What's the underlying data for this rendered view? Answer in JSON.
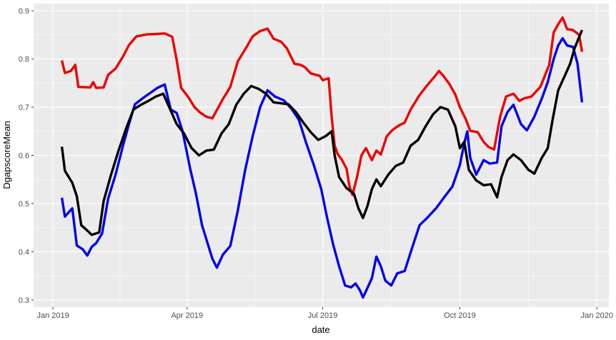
{
  "chart_data": {
    "type": "line",
    "xlabel": "date",
    "ylabel": "DgapscoreMean",
    "xlim": [
      "2018-12-19",
      "2020-01-09"
    ],
    "ylim": [
      0.285,
      0.915
    ],
    "x_ticks": [
      {
        "date": "2019-01-01",
        "label": "Jan 2019"
      },
      {
        "date": "2019-04-01",
        "label": "Apr 2019"
      },
      {
        "date": "2019-07-01",
        "label": "Jul 2019"
      },
      {
        "date": "2019-10-01",
        "label": "Oct 2019"
      },
      {
        "date": "2020-01-01",
        "label": "Jan 2020"
      }
    ],
    "y_ticks": [
      0.3,
      0.4,
      0.5,
      0.6,
      0.7,
      0.8,
      0.9
    ],
    "grid": true,
    "legend": "none",
    "background": "#ebebeb",
    "series": [
      {
        "color": "#ee0000",
        "points": [
          [
            "2019-01-07",
            0.797
          ],
          [
            "2019-01-09",
            0.771
          ],
          [
            "2019-01-13",
            0.775
          ],
          [
            "2019-01-16",
            0.788
          ],
          [
            "2019-01-18",
            0.742
          ],
          [
            "2019-01-26",
            0.741
          ],
          [
            "2019-01-28",
            0.752
          ],
          [
            "2019-01-30",
            0.74
          ],
          [
            "2019-02-04",
            0.741
          ],
          [
            "2019-02-07",
            0.767
          ],
          [
            "2019-02-12",
            0.78
          ],
          [
            "2019-02-17",
            0.805
          ],
          [
            "2019-02-21",
            0.829
          ],
          [
            "2019-02-26",
            0.847
          ],
          [
            "2019-03-05",
            0.851
          ],
          [
            "2019-03-12",
            0.852
          ],
          [
            "2019-03-17",
            0.853
          ],
          [
            "2019-03-22",
            0.846
          ],
          [
            "2019-03-25",
            0.798
          ],
          [
            "2019-03-28",
            0.74
          ],
          [
            "2019-04-02",
            0.72
          ],
          [
            "2019-04-06",
            0.7
          ],
          [
            "2019-04-10",
            0.688
          ],
          [
            "2019-04-14",
            0.68
          ],
          [
            "2019-04-18",
            0.677
          ],
          [
            "2019-04-25",
            0.717
          ],
          [
            "2019-04-30",
            0.742
          ],
          [
            "2019-05-05",
            0.795
          ],
          [
            "2019-05-10",
            0.82
          ],
          [
            "2019-05-15",
            0.847
          ],
          [
            "2019-05-20",
            0.858
          ],
          [
            "2019-05-25",
            0.863
          ],
          [
            "2019-05-29",
            0.842
          ],
          [
            "2019-06-03",
            0.836
          ],
          [
            "2019-06-07",
            0.822
          ],
          [
            "2019-06-12",
            0.79
          ],
          [
            "2019-06-16",
            0.788
          ],
          [
            "2019-06-19",
            0.783
          ],
          [
            "2019-06-23",
            0.77
          ],
          [
            "2019-06-29",
            0.765
          ],
          [
            "2019-07-01",
            0.756
          ],
          [
            "2019-07-05",
            0.76
          ],
          [
            "2019-07-07",
            0.68
          ],
          [
            "2019-07-09",
            0.62
          ],
          [
            "2019-07-11",
            0.603
          ],
          [
            "2019-07-14",
            0.59
          ],
          [
            "2019-07-17",
            0.572
          ],
          [
            "2019-07-19",
            0.535
          ],
          [
            "2019-07-21",
            0.518
          ],
          [
            "2019-07-24",
            0.555
          ],
          [
            "2019-07-27",
            0.6
          ],
          [
            "2019-07-30",
            0.615
          ],
          [
            "2019-08-03",
            0.59
          ],
          [
            "2019-08-06",
            0.61
          ],
          [
            "2019-08-09",
            0.602
          ],
          [
            "2019-08-13",
            0.64
          ],
          [
            "2019-08-17",
            0.653
          ],
          [
            "2019-08-21",
            0.662
          ],
          [
            "2019-08-25",
            0.668
          ],
          [
            "2019-08-29",
            0.695
          ],
          [
            "2019-09-04",
            0.725
          ],
          [
            "2019-09-09",
            0.745
          ],
          [
            "2019-09-14",
            0.763
          ],
          [
            "2019-09-17",
            0.775
          ],
          [
            "2019-09-20",
            0.765
          ],
          [
            "2019-09-24",
            0.748
          ],
          [
            "2019-09-28",
            0.726
          ],
          [
            "2019-10-01",
            0.7
          ],
          [
            "2019-10-05",
            0.675
          ],
          [
            "2019-10-08",
            0.651
          ],
          [
            "2019-10-13",
            0.648
          ],
          [
            "2019-10-17",
            0.628
          ],
          [
            "2019-10-20",
            0.618
          ],
          [
            "2019-10-24",
            0.612
          ],
          [
            "2019-10-28",
            0.68
          ],
          [
            "2019-11-01",
            0.722
          ],
          [
            "2019-11-06",
            0.728
          ],
          [
            "2019-11-10",
            0.713
          ],
          [
            "2019-11-13",
            0.718
          ],
          [
            "2019-11-18",
            0.722
          ],
          [
            "2019-11-24",
            0.742
          ],
          [
            "2019-11-30",
            0.788
          ],
          [
            "2019-12-03",
            0.855
          ],
          [
            "2019-12-06",
            0.872
          ],
          [
            "2019-12-09",
            0.886
          ],
          [
            "2019-12-12",
            0.862
          ],
          [
            "2019-12-16",
            0.86
          ],
          [
            "2019-12-20",
            0.85
          ],
          [
            "2019-12-22",
            0.815
          ]
        ]
      },
      {
        "color": "#0000ee",
        "points": [
          [
            "2019-01-07",
            0.512
          ],
          [
            "2019-01-09",
            0.473
          ],
          [
            "2019-01-14",
            0.49
          ],
          [
            "2019-01-17",
            0.413
          ],
          [
            "2019-01-21",
            0.405
          ],
          [
            "2019-01-24",
            0.392
          ],
          [
            "2019-01-27",
            0.41
          ],
          [
            "2019-01-30",
            0.418
          ],
          [
            "2019-02-03",
            0.438
          ],
          [
            "2019-02-07",
            0.51
          ],
          [
            "2019-02-12",
            0.56
          ],
          [
            "2019-02-17",
            0.62
          ],
          [
            "2019-02-21",
            0.665
          ],
          [
            "2019-02-25",
            0.706
          ],
          [
            "2019-03-02",
            0.718
          ],
          [
            "2019-03-07",
            0.729
          ],
          [
            "2019-03-12",
            0.74
          ],
          [
            "2019-03-17",
            0.747
          ],
          [
            "2019-03-21",
            0.695
          ],
          [
            "2019-03-25",
            0.688
          ],
          [
            "2019-03-29",
            0.65
          ],
          [
            "2019-04-03",
            0.573
          ],
          [
            "2019-04-07",
            0.52
          ],
          [
            "2019-04-11",
            0.455
          ],
          [
            "2019-04-15",
            0.415
          ],
          [
            "2019-04-18",
            0.385
          ],
          [
            "2019-04-21",
            0.367
          ],
          [
            "2019-04-25",
            0.394
          ],
          [
            "2019-04-30",
            0.412
          ],
          [
            "2019-05-05",
            0.485
          ],
          [
            "2019-05-10",
            0.57
          ],
          [
            "2019-05-15",
            0.64
          ],
          [
            "2019-05-20",
            0.7
          ],
          [
            "2019-05-25",
            0.735
          ],
          [
            "2019-05-30",
            0.722
          ],
          [
            "2019-06-05",
            0.714
          ],
          [
            "2019-06-10",
            0.697
          ],
          [
            "2019-06-15",
            0.674
          ],
          [
            "2019-06-20",
            0.625
          ],
          [
            "2019-06-25",
            0.58
          ],
          [
            "2019-06-30",
            0.53
          ],
          [
            "2019-07-04",
            0.47
          ],
          [
            "2019-07-08",
            0.415
          ],
          [
            "2019-07-12",
            0.37
          ],
          [
            "2019-07-16",
            0.33
          ],
          [
            "2019-07-20",
            0.326
          ],
          [
            "2019-07-23",
            0.334
          ],
          [
            "2019-07-26",
            0.32
          ],
          [
            "2019-07-28",
            0.305
          ],
          [
            "2019-07-31",
            0.325
          ],
          [
            "2019-08-03",
            0.345
          ],
          [
            "2019-08-06",
            0.39
          ],
          [
            "2019-08-09",
            0.37
          ],
          [
            "2019-08-12",
            0.34
          ],
          [
            "2019-08-16",
            0.33
          ],
          [
            "2019-08-20",
            0.355
          ],
          [
            "2019-08-25",
            0.36
          ],
          [
            "2019-08-30",
            0.408
          ],
          [
            "2019-09-04",
            0.455
          ],
          [
            "2019-09-09",
            0.47
          ],
          [
            "2019-09-15",
            0.49
          ],
          [
            "2019-09-21",
            0.515
          ],
          [
            "2019-09-26",
            0.535
          ],
          [
            "2019-10-01",
            0.58
          ],
          [
            "2019-10-04",
            0.625
          ],
          [
            "2019-10-06",
            0.65
          ],
          [
            "2019-10-08",
            0.595
          ],
          [
            "2019-10-12",
            0.56
          ],
          [
            "2019-10-17",
            0.59
          ],
          [
            "2019-10-21",
            0.583
          ],
          [
            "2019-10-26",
            0.585
          ],
          [
            "2019-10-29",
            0.66
          ],
          [
            "2019-11-02",
            0.69
          ],
          [
            "2019-11-06",
            0.705
          ],
          [
            "2019-11-11",
            0.665
          ],
          [
            "2019-11-15",
            0.652
          ],
          [
            "2019-11-20",
            0.68
          ],
          [
            "2019-11-25",
            0.718
          ],
          [
            "2019-11-29",
            0.752
          ],
          [
            "2019-12-03",
            0.8
          ],
          [
            "2019-12-06",
            0.828
          ],
          [
            "2019-12-09",
            0.843
          ],
          [
            "2019-12-12",
            0.828
          ],
          [
            "2019-12-16",
            0.825
          ],
          [
            "2019-12-19",
            0.79
          ],
          [
            "2019-12-22",
            0.71
          ]
        ]
      },
      {
        "color": "#000000",
        "points": [
          [
            "2019-01-07",
            0.618
          ],
          [
            "2019-01-09",
            0.568
          ],
          [
            "2019-01-14",
            0.543
          ],
          [
            "2019-01-17",
            0.515
          ],
          [
            "2019-01-20",
            0.455
          ],
          [
            "2019-01-24",
            0.444
          ],
          [
            "2019-01-27",
            0.435
          ],
          [
            "2019-02-01",
            0.44
          ],
          [
            "2019-02-04",
            0.505
          ],
          [
            "2019-02-09",
            0.56
          ],
          [
            "2019-02-14",
            0.61
          ],
          [
            "2019-02-19",
            0.655
          ],
          [
            "2019-02-24",
            0.695
          ],
          [
            "2019-03-01",
            0.705
          ],
          [
            "2019-03-06",
            0.713
          ],
          [
            "2019-03-11",
            0.722
          ],
          [
            "2019-03-16",
            0.728
          ],
          [
            "2019-03-20",
            0.7
          ],
          [
            "2019-03-25",
            0.665
          ],
          [
            "2019-03-30",
            0.645
          ],
          [
            "2019-04-04",
            0.615
          ],
          [
            "2019-04-09",
            0.6
          ],
          [
            "2019-04-14",
            0.61
          ],
          [
            "2019-04-19",
            0.612
          ],
          [
            "2019-04-24",
            0.645
          ],
          [
            "2019-04-29",
            0.665
          ],
          [
            "2019-05-04",
            0.705
          ],
          [
            "2019-05-09",
            0.728
          ],
          [
            "2019-05-14",
            0.744
          ],
          [
            "2019-05-19",
            0.738
          ],
          [
            "2019-05-24",
            0.728
          ],
          [
            "2019-05-29",
            0.71
          ],
          [
            "2019-06-03",
            0.708
          ],
          [
            "2019-06-08",
            0.706
          ],
          [
            "2019-06-13",
            0.69
          ],
          [
            "2019-06-18",
            0.668
          ],
          [
            "2019-06-23",
            0.648
          ],
          [
            "2019-06-28",
            0.632
          ],
          [
            "2019-07-03",
            0.64
          ],
          [
            "2019-07-07",
            0.65
          ],
          [
            "2019-07-09",
            0.6
          ],
          [
            "2019-07-12",
            0.555
          ],
          [
            "2019-07-17",
            0.532
          ],
          [
            "2019-07-22",
            0.52
          ],
          [
            "2019-07-25",
            0.49
          ],
          [
            "2019-07-28",
            0.47
          ],
          [
            "2019-07-31",
            0.495
          ],
          [
            "2019-08-03",
            0.53
          ],
          [
            "2019-08-06",
            0.55
          ],
          [
            "2019-08-09",
            0.536
          ],
          [
            "2019-08-14",
            0.56
          ],
          [
            "2019-08-19",
            0.578
          ],
          [
            "2019-08-24",
            0.585
          ],
          [
            "2019-08-29",
            0.62
          ],
          [
            "2019-09-03",
            0.632
          ],
          [
            "2019-09-08",
            0.66
          ],
          [
            "2019-09-13",
            0.685
          ],
          [
            "2019-09-18",
            0.7
          ],
          [
            "2019-09-23",
            0.695
          ],
          [
            "2019-09-28",
            0.66
          ],
          [
            "2019-10-01",
            0.615
          ],
          [
            "2019-10-04",
            0.628
          ],
          [
            "2019-10-07",
            0.57
          ],
          [
            "2019-10-12",
            0.548
          ],
          [
            "2019-10-17",
            0.538
          ],
          [
            "2019-10-22",
            0.54
          ],
          [
            "2019-10-26",
            0.513
          ],
          [
            "2019-10-29",
            0.555
          ],
          [
            "2019-11-02",
            0.59
          ],
          [
            "2019-11-06",
            0.602
          ],
          [
            "2019-11-11",
            0.59
          ],
          [
            "2019-11-16",
            0.57
          ],
          [
            "2019-11-20",
            0.562
          ],
          [
            "2019-11-25",
            0.595
          ],
          [
            "2019-11-29",
            0.615
          ],
          [
            "2019-12-02",
            0.67
          ],
          [
            "2019-12-06",
            0.735
          ],
          [
            "2019-12-10",
            0.762
          ],
          [
            "2019-12-14",
            0.79
          ],
          [
            "2019-12-17",
            0.822
          ],
          [
            "2019-12-20",
            0.845
          ],
          [
            "2019-12-22",
            0.86
          ]
        ]
      }
    ]
  }
}
